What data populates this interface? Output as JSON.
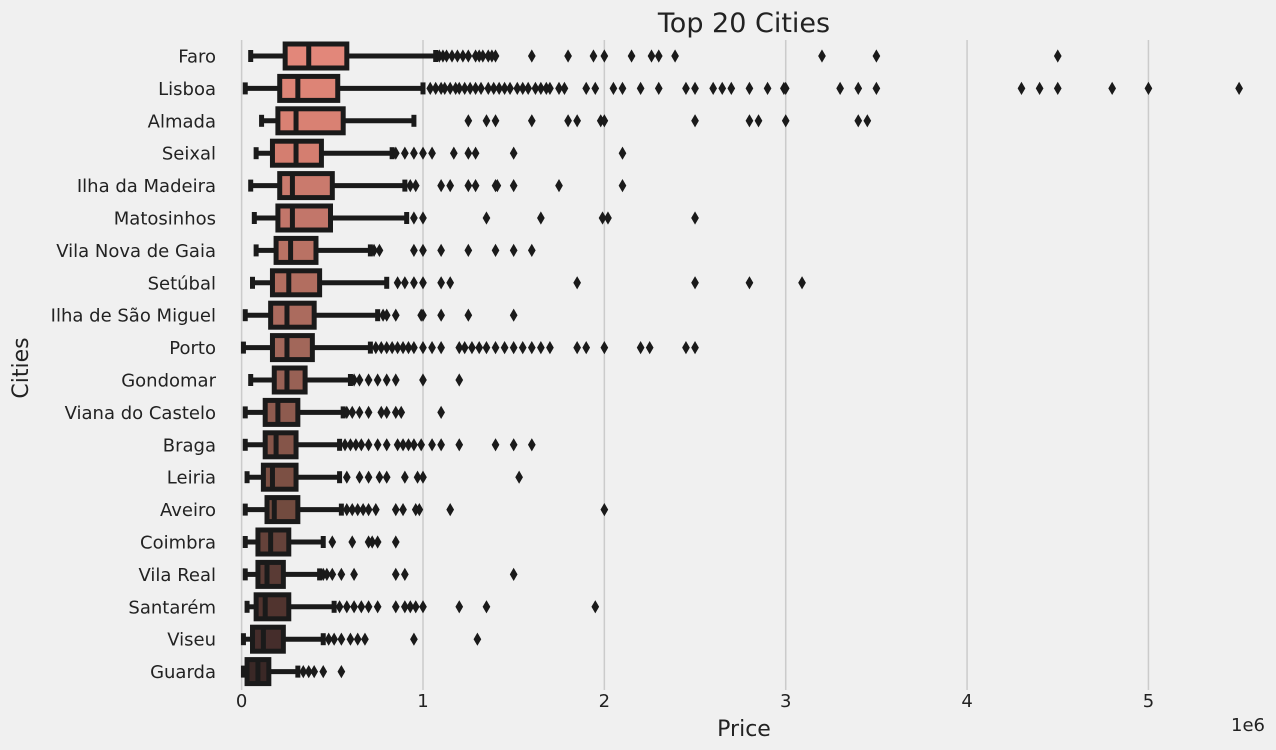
{
  "chart_data": {
    "type": "boxplot",
    "title": "Top 20 Cities",
    "xlabel": "Price",
    "ylabel": "Cities",
    "x_scale_label": "1e6",
    "xlim": [
      -0.02,
      5.56
    ],
    "x_ticks": [
      0,
      1,
      2,
      3,
      4,
      5
    ],
    "x_tick_labels": [
      "0",
      "1",
      "2",
      "3",
      "4",
      "5"
    ],
    "grid": "vertical",
    "categories": [
      "Faro",
      "Lisboa",
      "Almada",
      "Seixal",
      "Ilha da Madeira",
      "Matosinhos",
      "Vila Nova de Gaia",
      "Setúbal",
      "Ilha de São Miguel",
      "Porto",
      "Gondomar",
      "Viana do Castelo",
      "Braga",
      "Leiria",
      "Aveiro",
      "Coimbra",
      "Vila Real",
      "Santarém",
      "Viseu",
      "Guarda"
    ],
    "colors": [
      "#e2877a",
      "#dd8476",
      "#d98173",
      "#d47e70",
      "#ca7a6d",
      "#c2766a",
      "#b97264",
      "#b26e60",
      "#ab6b5e",
      "#a2675a",
      "#986155",
      "#8e5b4f",
      "#855549",
      "#7c5044",
      "#724b3f",
      "#65423a",
      "#5a3b35",
      "#51342f",
      "#452d2b",
      "#3a2826"
    ],
    "series": [
      {
        "q1": 0.24,
        "median": 0.37,
        "q3": 0.58,
        "whisker_low": 0.05,
        "whisker_high": 1.07,
        "outliers": [
          1.09,
          1.11,
          1.13,
          1.16,
          1.19,
          1.22,
          1.25,
          1.29,
          1.31,
          1.33,
          1.36,
          1.38,
          1.4,
          1.6,
          1.8,
          1.94,
          2.0,
          2.15,
          2.26,
          2.3,
          2.39,
          3.2,
          3.5,
          4.5
        ]
      },
      {
        "q1": 0.21,
        "median": 0.31,
        "q3": 0.53,
        "whisker_low": 0.02,
        "whisker_high": 1.0,
        "outliers": [
          1.04,
          1.07,
          1.1,
          1.12,
          1.15,
          1.18,
          1.2,
          1.23,
          1.26,
          1.29,
          1.32,
          1.36,
          1.39,
          1.42,
          1.45,
          1.48,
          1.52,
          1.55,
          1.58,
          1.62,
          1.65,
          1.68,
          1.7,
          1.75,
          1.78,
          1.9,
          1.95,
          2.05,
          2.1,
          2.2,
          2.3,
          2.45,
          2.5,
          2.6,
          2.65,
          2.7,
          2.8,
          2.9,
          2.99,
          3.0,
          3.3,
          3.4,
          3.5,
          4.3,
          4.4,
          4.5,
          4.8,
          5.0,
          5.5
        ]
      },
      {
        "q1": 0.2,
        "median": 0.3,
        "q3": 0.56,
        "whisker_low": 0.11,
        "whisker_high": 0.95,
        "outliers": [
          1.25,
          1.35,
          1.4,
          1.6,
          1.8,
          1.85,
          1.98,
          2.0,
          2.5,
          2.8,
          2.85,
          3.0,
          3.4,
          3.45
        ]
      },
      {
        "q1": 0.17,
        "median": 0.3,
        "q3": 0.44,
        "whisker_low": 0.08,
        "whisker_high": 0.83,
        "outliers": [
          0.85,
          0.9,
          0.95,
          1.0,
          1.05,
          1.17,
          1.25,
          1.29,
          1.5,
          2.1
        ]
      },
      {
        "q1": 0.21,
        "median": 0.28,
        "q3": 0.5,
        "whisker_low": 0.05,
        "whisker_high": 0.9,
        "outliers": [
          0.93,
          0.96,
          1.1,
          1.15,
          1.25,
          1.29,
          1.4,
          1.41,
          1.5,
          1.75,
          2.1
        ]
      },
      {
        "q1": 0.2,
        "median": 0.28,
        "q3": 0.49,
        "whisker_low": 0.07,
        "whisker_high": 0.91,
        "outliers": [
          0.95,
          1.0,
          1.35,
          1.65,
          1.99,
          2.02,
          2.5
        ]
      },
      {
        "q1": 0.19,
        "median": 0.27,
        "q3": 0.41,
        "whisker_low": 0.08,
        "whisker_high": 0.71,
        "outliers": [
          0.73,
          0.76,
          0.95,
          1.0,
          1.1,
          1.25,
          1.4,
          1.5,
          1.6
        ]
      },
      {
        "q1": 0.17,
        "median": 0.26,
        "q3": 0.43,
        "whisker_low": 0.06,
        "whisker_high": 0.8,
        "outliers": [
          0.86,
          0.9,
          0.95,
          1.0,
          1.1,
          1.15,
          1.85,
          2.5,
          2.8,
          3.09
        ]
      },
      {
        "q1": 0.16,
        "median": 0.25,
        "q3": 0.4,
        "whisker_low": 0.02,
        "whisker_high": 0.75,
        "outliers": [
          0.78,
          0.8,
          0.85,
          0.99,
          1.0,
          1.1,
          1.25,
          1.5
        ]
      },
      {
        "q1": 0.17,
        "median": 0.25,
        "q3": 0.39,
        "whisker_low": 0.01,
        "whisker_high": 0.71,
        "outliers": [
          0.74,
          0.77,
          0.8,
          0.83,
          0.86,
          0.89,
          0.92,
          0.95,
          1.0,
          1.05,
          1.1,
          1.2,
          1.23,
          1.27,
          1.31,
          1.35,
          1.4,
          1.45,
          1.5,
          1.55,
          1.6,
          1.65,
          1.7,
          1.85,
          1.9,
          2.0,
          2.2,
          2.25,
          2.45,
          2.5
        ]
      },
      {
        "q1": 0.18,
        "median": 0.25,
        "q3": 0.35,
        "whisker_low": 0.05,
        "whisker_high": 0.6,
        "outliers": [
          0.62,
          0.65,
          0.7,
          0.75,
          0.8,
          0.85,
          1.0,
          1.2
        ]
      },
      {
        "q1": 0.13,
        "median": 0.2,
        "q3": 0.31,
        "whisker_low": 0.02,
        "whisker_high": 0.56,
        "outliers": [
          0.58,
          0.61,
          0.65,
          0.7,
          0.77,
          0.8,
          0.85,
          0.88,
          1.1
        ]
      },
      {
        "q1": 0.13,
        "median": 0.19,
        "q3": 0.3,
        "whisker_low": 0.02,
        "whisker_high": 0.54,
        "outliers": [
          0.57,
          0.6,
          0.63,
          0.66,
          0.7,
          0.75,
          0.8,
          0.86,
          0.89,
          0.92,
          0.95,
          0.99,
          1.05,
          1.1,
          1.2,
          1.4,
          1.5,
          1.6
        ]
      },
      {
        "q1": 0.12,
        "median": 0.17,
        "q3": 0.3,
        "whisker_low": 0.03,
        "whisker_high": 0.54,
        "outliers": [
          0.58,
          0.65,
          0.7,
          0.76,
          0.8,
          0.9,
          0.97,
          1.0,
          1.53
        ]
      },
      {
        "q1": 0.14,
        "median": 0.18,
        "q3": 0.31,
        "whisker_low": 0.02,
        "whisker_high": 0.55,
        "outliers": [
          0.58,
          0.61,
          0.64,
          0.67,
          0.7,
          0.74,
          0.85,
          0.89,
          0.96,
          0.98,
          1.15,
          2.0
        ]
      },
      {
        "q1": 0.09,
        "median": 0.16,
        "q3": 0.26,
        "whisker_low": 0.02,
        "whisker_high": 0.45,
        "outliers": [
          0.5,
          0.61,
          0.7,
          0.72,
          0.75,
          0.85
        ]
      },
      {
        "q1": 0.09,
        "median": 0.14,
        "q3": 0.23,
        "whisker_low": 0.02,
        "whisker_high": 0.43,
        "outliers": [
          0.45,
          0.47,
          0.5,
          0.55,
          0.62,
          0.85,
          0.9,
          1.5
        ]
      },
      {
        "q1": 0.08,
        "median": 0.13,
        "q3": 0.26,
        "whisker_low": 0.03,
        "whisker_high": 0.51,
        "outliers": [
          0.54,
          0.58,
          0.62,
          0.66,
          0.7,
          0.75,
          0.85,
          0.9,
          0.93,
          0.96,
          1.0,
          1.2,
          1.35,
          1.95
        ]
      },
      {
        "q1": 0.06,
        "median": 0.12,
        "q3": 0.23,
        "whisker_low": 0.01,
        "whisker_high": 0.45,
        "outliers": [
          0.48,
          0.51,
          0.55,
          0.6,
          0.64,
          0.68,
          0.95,
          1.3
        ]
      },
      {
        "q1": 0.03,
        "median": 0.09,
        "q3": 0.15,
        "whisker_low": 0.01,
        "whisker_high": 0.31,
        "outliers": [
          0.34,
          0.37,
          0.4,
          0.45,
          0.55
        ]
      }
    ]
  }
}
